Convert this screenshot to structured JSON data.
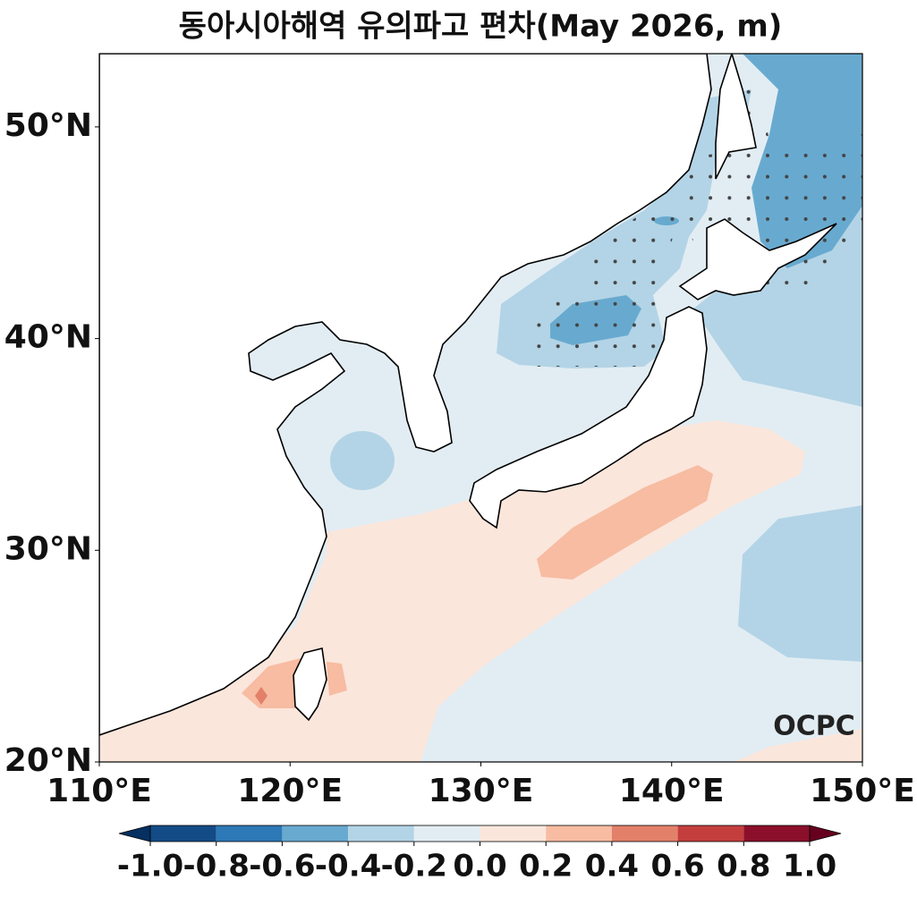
{
  "title": "동아시아해역 유의파고 편차(May 2026, m)",
  "map": {
    "xlim": [
      110,
      150
    ],
    "ylim": [
      20,
      53.46
    ],
    "xticks": [
      {
        "value": 110,
        "label": "110°E"
      },
      {
        "value": 120,
        "label": "120°E"
      },
      {
        "value": 130,
        "label": "130°E"
      },
      {
        "value": 140,
        "label": "140°E"
      },
      {
        "value": 150,
        "label": "150°E"
      }
    ],
    "yticks": [
      {
        "value": 20,
        "label": "20°N"
      },
      {
        "value": 30,
        "label": "30°N"
      },
      {
        "value": 40,
        "label": "40°N"
      },
      {
        "value": 50,
        "label": "50°N"
      }
    ]
  },
  "colorbar": {
    "ticks": [
      {
        "value": -1,
        "label": "-1.0"
      },
      -0.8,
      -0.6,
      -0.4,
      -0.2,
      {
        "value": 0,
        "label": "0.0"
      },
      0.2,
      0.4,
      0.6,
      0.8,
      {
        "value": 1,
        "label": "1.0"
      }
    ],
    "colors": [
      "#134b86",
      "#2d78b6",
      "#68aacf",
      "#b3d4e6",
      "#e2edf3",
      "#fbe6dc",
      "#f7bca2",
      "#e3806a",
      "#c43e3e",
      "#8b0f2a"
    ],
    "under_color": "#053061",
    "over_color": "#67001f"
  },
  "logo": "OCPC"
}
